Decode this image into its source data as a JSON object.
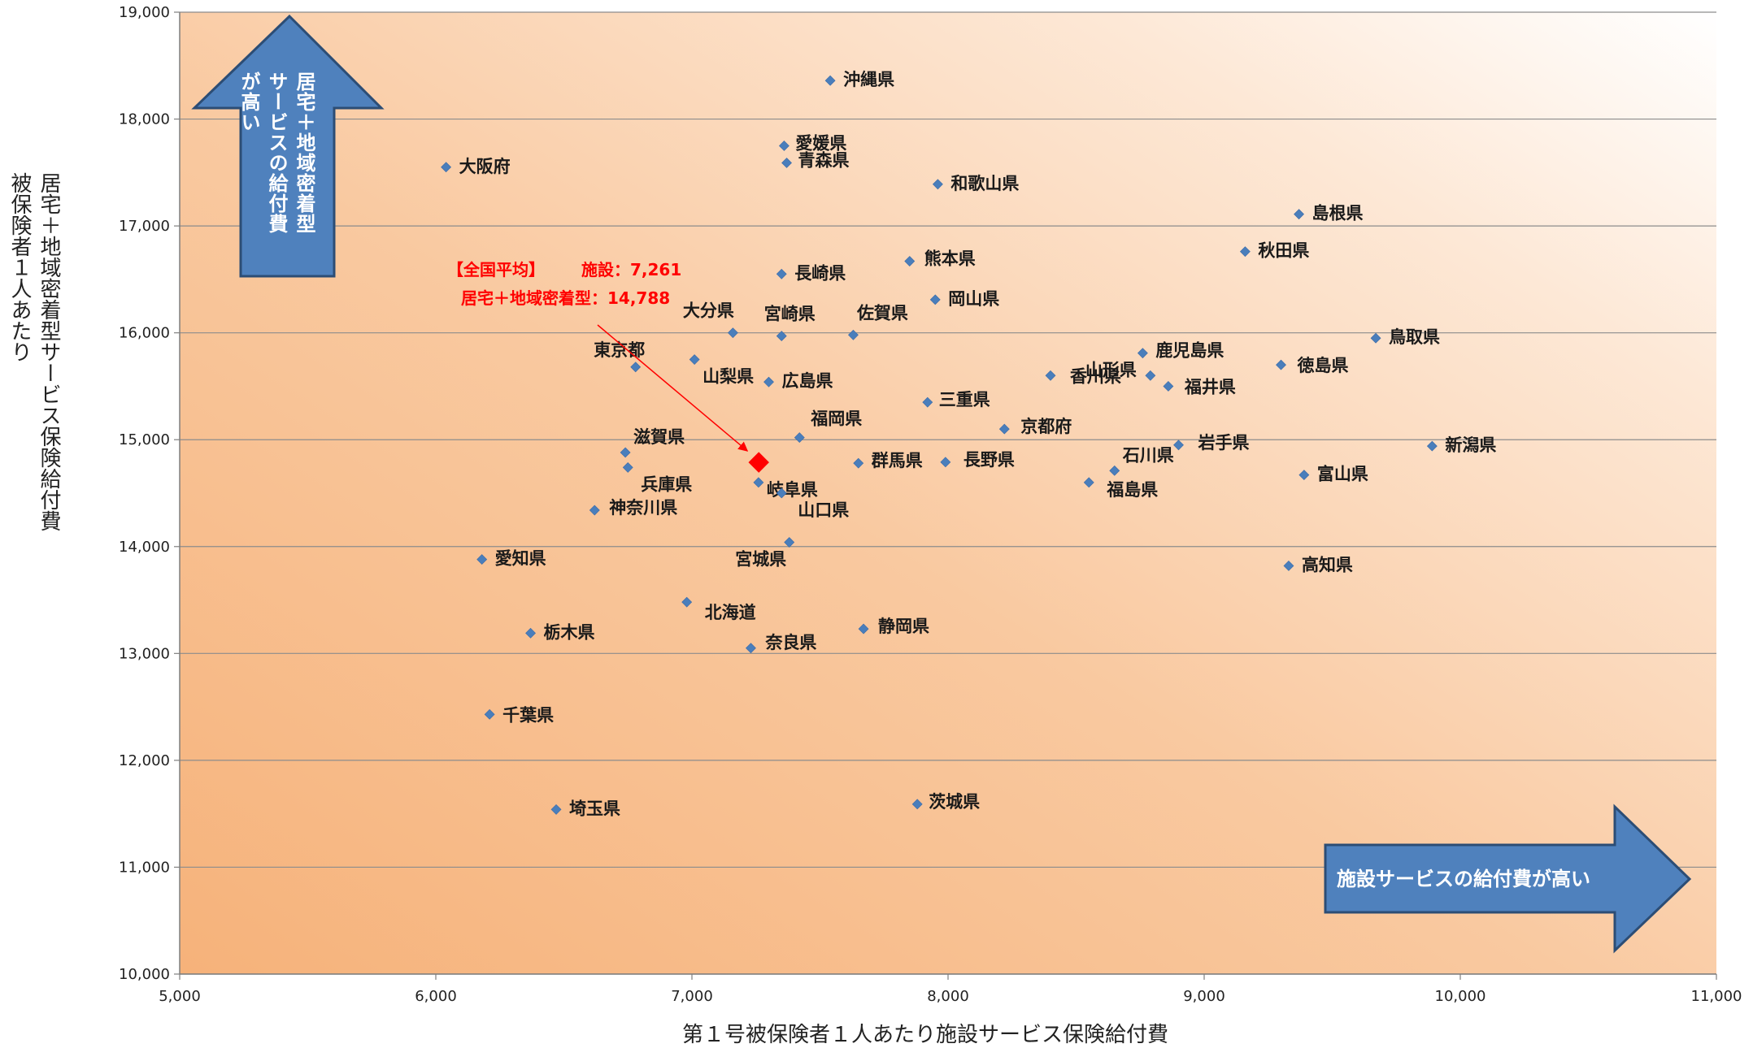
{
  "chart_data": {
    "type": "scatter",
    "xlabel": "第１号被保険者１人あたり施設サービス保険給付費",
    "ylabel": "居宅＋地域密着型サービス保険給付費",
    "ylabel_prefix": "被保険者１人あたり",
    "xlim": [
      5000,
      11000
    ],
    "ylim": [
      10000,
      19000
    ],
    "x_ticks": [
      "5,000",
      "6,000",
      "7,000",
      "8,000",
      "9,000",
      "10,000",
      "11,000"
    ],
    "y_ticks": [
      "10,000",
      "11,000",
      "12,000",
      "13,000",
      "14,000",
      "15,000",
      "16,000",
      "17,000",
      "18,000",
      "19,000"
    ],
    "grid": "horizontal",
    "colors": {
      "point": "#4a7ebb",
      "average": "#ff0000",
      "arrow_fill": "#4f81bd",
      "arrow_stroke": "#2c4d75",
      "bg_dark": "#f7b57e",
      "bg_light": "#ffffff"
    },
    "points": [
      {
        "label": "沖縄県",
        "x": 7540,
        "y": 18360
      },
      {
        "label": "大阪府",
        "x": 6040,
        "y": 17550
      },
      {
        "label": "愛媛県",
        "x": 7360,
        "y": 17750
      },
      {
        "label": "青森県",
        "x": 7370,
        "y": 17590
      },
      {
        "label": "和歌山県",
        "x": 7960,
        "y": 17390
      },
      {
        "label": "島根県",
        "x": 9370,
        "y": 17110
      },
      {
        "label": "秋田県",
        "x": 9160,
        "y": 16760
      },
      {
        "label": "熊本県",
        "x": 7850,
        "y": 16670
      },
      {
        "label": "長崎県",
        "x": 7350,
        "y": 16550
      },
      {
        "label": "岡山県",
        "x": 7950,
        "y": 16310
      },
      {
        "label": "大分県",
        "x": 7160,
        "y": 16000
      },
      {
        "label": "宮崎県",
        "x": 7350,
        "y": 15970
      },
      {
        "label": "佐賀県",
        "x": 7630,
        "y": 15980
      },
      {
        "label": "鳥取県",
        "x": 9670,
        "y": 15950
      },
      {
        "label": "東京都",
        "x": 6780,
        "y": 15680
      },
      {
        "label": "山梨県",
        "x": 7010,
        "y": 15750
      },
      {
        "label": "鹿児島県",
        "x": 8760,
        "y": 15810
      },
      {
        "label": "山形県",
        "x": 8790,
        "y": 15600
      },
      {
        "label": "徳島県",
        "x": 9300,
        "y": 15700
      },
      {
        "label": "香川県",
        "x": 8400,
        "y": 15600
      },
      {
        "label": "広島県",
        "x": 7300,
        "y": 15540
      },
      {
        "label": "福井県",
        "x": 8860,
        "y": 15500
      },
      {
        "label": "三重県",
        "x": 7920,
        "y": 15350
      },
      {
        "label": "福岡県",
        "x": 7420,
        "y": 15020
      },
      {
        "label": "京都府",
        "x": 8220,
        "y": 15100
      },
      {
        "label": "滋賀県",
        "x": 6740,
        "y": 14880
      },
      {
        "label": "兵庫県",
        "x": 6750,
        "y": 14740
      },
      {
        "label": "群馬県",
        "x": 7650,
        "y": 14780
      },
      {
        "label": "長野県",
        "x": 7990,
        "y": 14790
      },
      {
        "label": "岩手県",
        "x": 8900,
        "y": 14950
      },
      {
        "label": "石川県",
        "x": 8650,
        "y": 14710
      },
      {
        "label": "新潟県",
        "x": 9890,
        "y": 14940
      },
      {
        "label": "富山県",
        "x": 9390,
        "y": 14670
      },
      {
        "label": "福島県",
        "x": 8550,
        "y": 14600
      },
      {
        "label": "岐阜県",
        "x": 7260,
        "y": 14600
      },
      {
        "label": "山口県",
        "x": 7350,
        "y": 14500
      },
      {
        "label": "神奈川県",
        "x": 6620,
        "y": 14340
      },
      {
        "label": "宮城県",
        "x": 7380,
        "y": 14040
      },
      {
        "label": "愛知県",
        "x": 6180,
        "y": 13880
      },
      {
        "label": "高知県",
        "x": 9330,
        "y": 13820
      },
      {
        "label": "北海道",
        "x": 6980,
        "y": 13480
      },
      {
        "label": "栃木県",
        "x": 6370,
        "y": 13190
      },
      {
        "label": "静岡県",
        "x": 7670,
        "y": 13230
      },
      {
        "label": "奈良県",
        "x": 7230,
        "y": 13050
      },
      {
        "label": "千葉県",
        "x": 6210,
        "y": 12430
      },
      {
        "label": "埼玉県",
        "x": 6470,
        "y": 11540
      },
      {
        "label": "茨城県",
        "x": 7880,
        "y": 11590
      }
    ],
    "average": {
      "x": 7261,
      "y": 14788,
      "title": "【全国平均】",
      "line1": "施設：7,261",
      "line2": "居宅＋地域密着型：14,788"
    },
    "annotations": {
      "up_arrow_lines": [
        "居宅＋地域密着型",
        "サービスの給付費",
        "が高い"
      ],
      "right_arrow": "施設サービスの給付費が高い"
    }
  }
}
